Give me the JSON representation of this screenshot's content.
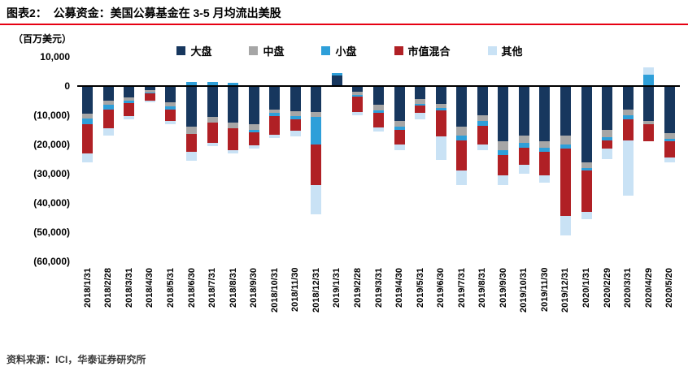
{
  "header": {
    "title": "图表2：  公募资金：美国公募基金在 3-5 月均流出美股"
  },
  "footer": {
    "source": "资料来源：ICI，华泰证券研究所"
  },
  "colors": {
    "rule_red": "#e60012",
    "axis_black": "#000000"
  },
  "chart_data": {
    "type": "bar",
    "stacked": true,
    "unit_label": "（百万美元）",
    "legend_position": "top",
    "grid": false,
    "ylim": [
      -60000,
      10000
    ],
    "y_ticks": [
      10000,
      0,
      -10000,
      -20000,
      -30000,
      -40000,
      -50000,
      -60000
    ],
    "y_tick_labels": [
      "10,000",
      "0",
      "(10,000)",
      "(20,000)",
      "(30,000)",
      "(40,000)",
      "(50,000)",
      "(60,000)"
    ],
    "categories": [
      "2018/1/31",
      "2018/2/28",
      "2018/3/31",
      "2018/4/30",
      "2018/5/31",
      "2018/6/30",
      "2018/7/31",
      "2018/8/31",
      "2018/9/30",
      "2018/10/31",
      "2018/11/30",
      "2018/12/31",
      "2019/1/31",
      "2019/2/28",
      "2019/3/31",
      "2019/4/30",
      "2019/5/31",
      "2019/6/30",
      "2019/7/31",
      "2019/8/31",
      "2019/9/30",
      "2019/10/31",
      "2019/11/30",
      "2019/12/31",
      "2020/1/31",
      "2020/2/29",
      "2020/3/31",
      "2020/4/29",
      "2020/5/20"
    ],
    "series": [
      {
        "key": "large",
        "name": "大盘",
        "color": "#17375e",
        "values": [
          -9500,
          -5000,
          -4000,
          -1500,
          -5500,
          -14000,
          -10500,
          -12500,
          -13000,
          -8000,
          -8500,
          -9000,
          3500,
          -2000,
          -6500,
          -12000,
          -4500,
          -6000,
          -14000,
          -10000,
          -19000,
          -17000,
          -19000,
          -17000,
          -26000,
          -15000,
          -8000,
          -12000,
          -16000
        ]
      },
      {
        "key": "mid",
        "name": "中盘",
        "color": "#a6a6a6",
        "values": [
          -1500,
          -1500,
          -1000,
          -700,
          -1500,
          -2500,
          -2000,
          -2000,
          -2000,
          -1200,
          -1800,
          -1500,
          0,
          -1000,
          -1800,
          -2000,
          -1500,
          -1500,
          -3000,
          -2000,
          -3000,
          -2500,
          -2000,
          -3000,
          -2000,
          -2500,
          -2000,
          -1000,
          -2000
        ]
      },
      {
        "key": "small",
        "name": "小盘",
        "color": "#2e9fd9",
        "values": [
          -2000,
          -1500,
          -800,
          -400,
          -1000,
          1500,
          1500,
          1200,
          -800,
          -1000,
          -1000,
          -9500,
          1000,
          -500,
          -800,
          -1000,
          -800,
          -800,
          -1500,
          -1500,
          -1500,
          -1500,
          -1500,
          -1500,
          -1000,
          -1000,
          -1500,
          4000,
          -1000
        ]
      },
      {
        "key": "blend",
        "name": "市值混合",
        "color": "#b02025",
        "values": [
          -10000,
          -6500,
          -4500,
          -2500,
          -4000,
          -6000,
          -7000,
          -7500,
          -4500,
          -6500,
          -4000,
          -14000,
          0,
          -5500,
          -5000,
          -5000,
          -2500,
          -9000,
          -10500,
          -6500,
          -7000,
          -6000,
          -8000,
          -23000,
          -14000,
          -3000,
          -7000,
          -6000,
          -5500
        ]
      },
      {
        "key": "other",
        "name": "其他",
        "color": "#c9e2f5",
        "values": [
          -3000,
          -2500,
          -1000,
          -500,
          -1000,
          -3000,
          -1000,
          -1000,
          -1000,
          -1000,
          -2000,
          -10000,
          0,
          -1000,
          -1500,
          -2000,
          -2000,
          -8000,
          -5000,
          -2000,
          -3500,
          -3000,
          -2500,
          -6500,
          -2500,
          -3500,
          -19000,
          2500,
          -1500
        ]
      }
    ]
  }
}
